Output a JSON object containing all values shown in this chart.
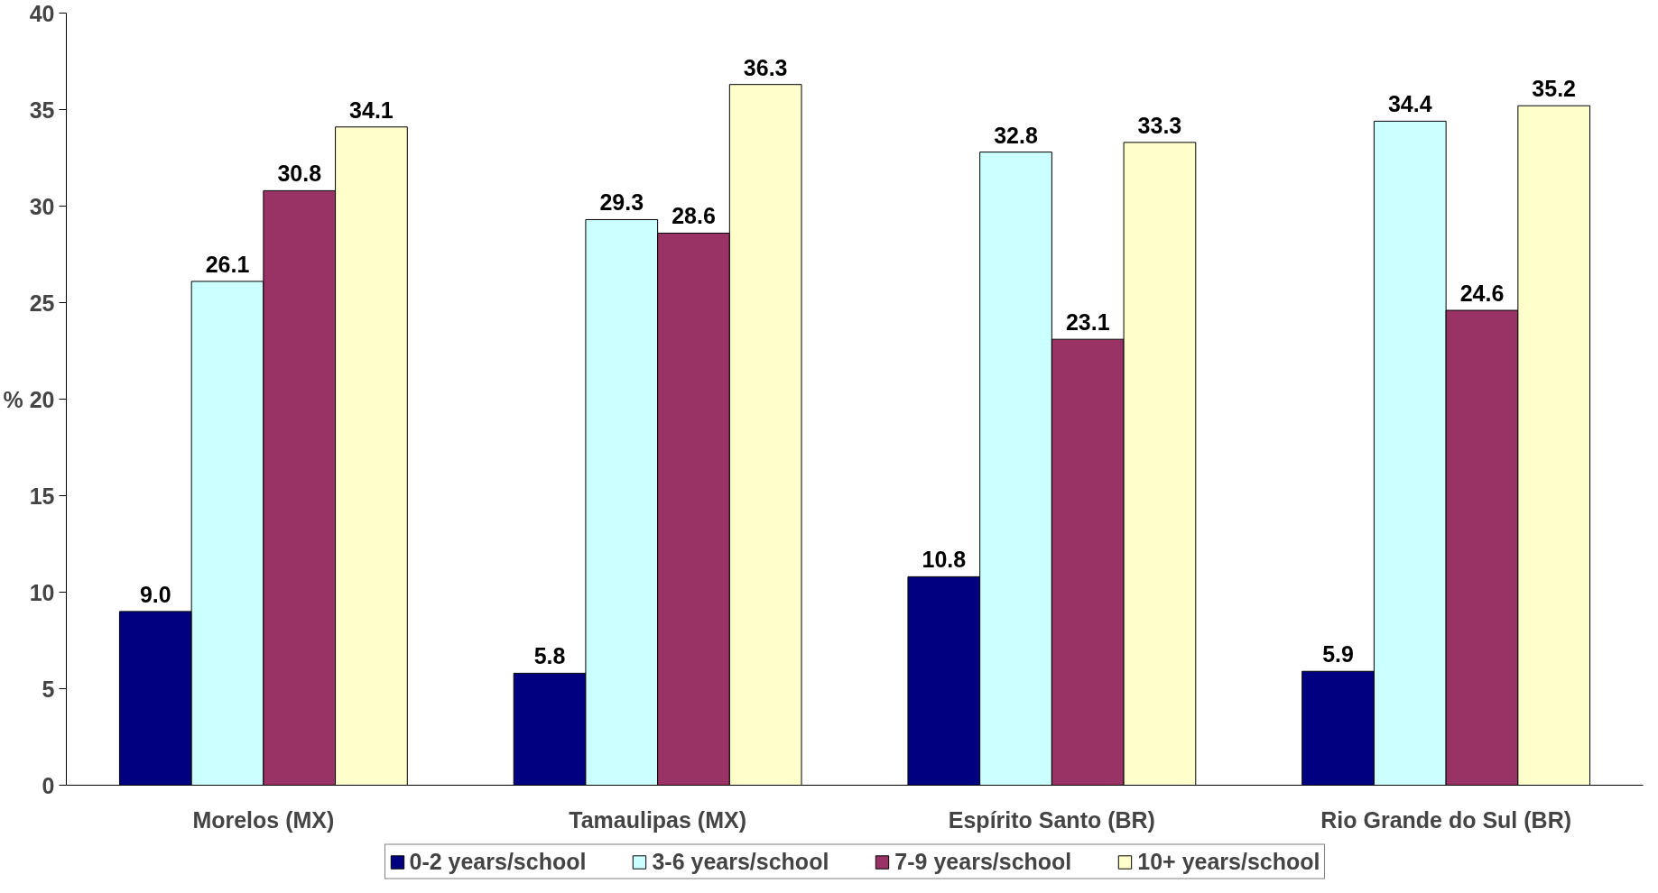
{
  "chart_data": {
    "type": "bar",
    "ylabel": "%",
    "categories": [
      "Morelos (MX)",
      "Tamaulipas (MX)",
      "Espírito Santo (BR)",
      "Rio Grande do Sul (BR)"
    ],
    "series": [
      {
        "name": "0-2 years/school",
        "color": "#000080",
        "values": [
          9.0,
          5.8,
          10.8,
          5.9
        ],
        "value_labels": [
          "9.0",
          "5.8",
          "10.8",
          "5.9"
        ]
      },
      {
        "name": "3-6 years/school",
        "color": "#ccffff",
        "values": [
          26.1,
          29.3,
          32.8,
          34.4
        ],
        "value_labels": [
          "26.1",
          "29.3",
          "32.8",
          "34.4"
        ]
      },
      {
        "name": "7-9 years/school",
        "color": "#993366",
        "values": [
          30.8,
          28.6,
          23.1,
          24.6
        ],
        "value_labels": [
          "30.8",
          "28.6",
          "23.1",
          "24.6"
        ]
      },
      {
        "name": "10+ years/school",
        "color": "#ffffcc",
        "values": [
          34.1,
          36.3,
          33.3,
          35.2
        ],
        "value_labels": [
          "34.1",
          "36.3",
          "33.3",
          "35.2"
        ]
      }
    ],
    "ylim": [
      0,
      40
    ],
    "yticks": [
      0,
      5,
      10,
      15,
      20,
      25,
      30,
      35,
      40
    ],
    "grid": false,
    "legend": "bottom"
  }
}
